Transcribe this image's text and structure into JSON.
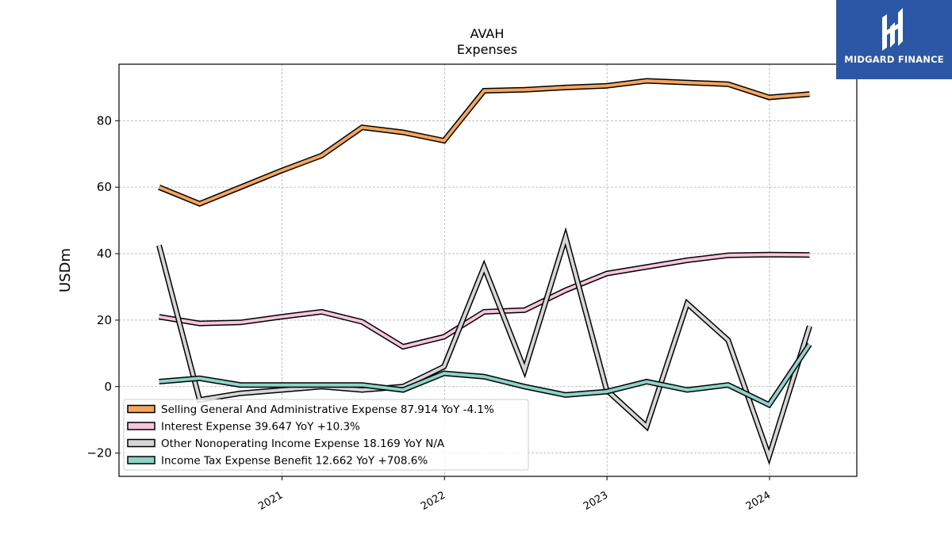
{
  "chart_data": {
    "type": "line",
    "title": "AVAH",
    "subtitle": "Expenses",
    "ylabel": "USDm",
    "xlabel": "",
    "ylim": [
      -27,
      97
    ],
    "xlim": [
      "2020-01-01",
      "2024-07-15"
    ],
    "yticks": [
      -20,
      0,
      20,
      40,
      60,
      80
    ],
    "ytick_labels": [
      "−20",
      "0",
      "20",
      "40",
      "60",
      "80"
    ],
    "xticks": [
      "2021-01-01",
      "2022-01-01",
      "2023-01-01",
      "2024-01-01"
    ],
    "xtick_labels": [
      "2021",
      "2022",
      "2023",
      "2024"
    ],
    "grid": true,
    "legend_position": "bottom-left",
    "x": [
      "2020-03-31",
      "2020-06-30",
      "2020-09-30",
      "2020-12-31",
      "2021-03-31",
      "2021-06-30",
      "2021-09-30",
      "2021-12-31",
      "2022-03-31",
      "2022-06-30",
      "2022-09-30",
      "2022-12-31",
      "2023-03-31",
      "2023-06-30",
      "2023-09-30",
      "2023-12-31",
      "2024-03-31"
    ],
    "series": [
      {
        "name": "Selling General And Administrative Expense",
        "legend_label": "Selling General And Administrative Expense  87.914 YoY -4.1%",
        "color": "#f5a55c",
        "values": [
          60,
          55,
          60,
          65,
          69.5,
          78,
          76.5,
          74,
          89,
          89.3,
          90,
          90.5,
          92,
          91.5,
          91,
          87,
          88
        ]
      },
      {
        "name": "Interest Expense",
        "legend_label": "Interest Expense  39.647 YoY +10.3%",
        "color": "#f8c6dc",
        "values": [
          21,
          19,
          19.3,
          21,
          22.5,
          19.5,
          12,
          15,
          22.5,
          23,
          29,
          34,
          36,
          38,
          39.5,
          39.7,
          39.6
        ]
      },
      {
        "name": "Other Nonoperating Income Expense",
        "legend_label": "Other Nonoperating Income Expense  18.169 YoY N/A",
        "color": "#d6d6d6",
        "values": [
          42.5,
          -4,
          -2,
          -1,
          0,
          -1,
          0,
          6,
          36,
          5,
          45,
          -1,
          -12,
          25,
          14,
          -21,
          18.2
        ]
      },
      {
        "name": "Income Tax Expense Benefit",
        "legend_label": "Income Tax Expense Benefit  12.662 YoY +708.6%",
        "color": "#8dd3c7",
        "values": [
          1.5,
          2.5,
          0.5,
          0.5,
          0.5,
          0.5,
          -1,
          4,
          3,
          0,
          -2.5,
          -1.5,
          1.5,
          -1,
          0.5,
          -5.5,
          12.7
        ]
      }
    ]
  },
  "logo": {
    "text": "MIDGARD FINANCE",
    "background": "#2b57a6"
  }
}
